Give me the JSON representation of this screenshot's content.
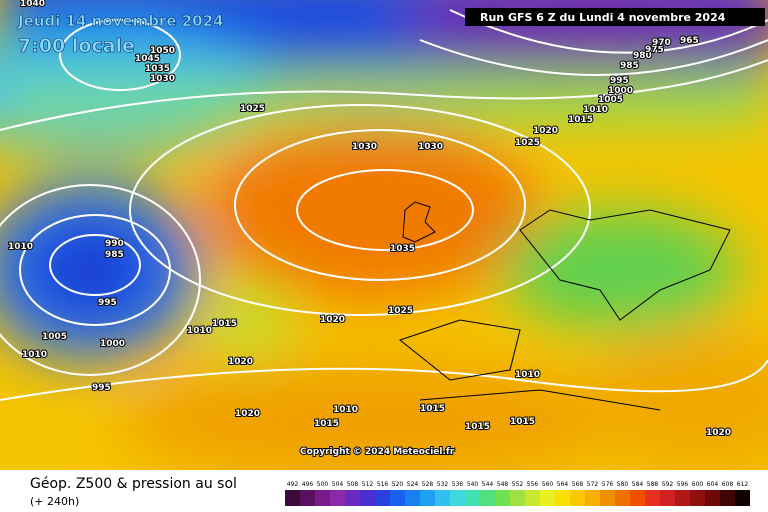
{
  "header": {
    "date": "Jeudi 14 novembre 2024",
    "time": "7:00 locale",
    "run": "Run GFS 6 Z du Lundi 4 novembre 2024"
  },
  "isobar_labels": [
    "1040",
    "1050",
    "1045",
    "1035",
    "1030",
    "1025",
    "1030",
    "1030",
    "1035",
    "1020",
    "1025",
    "1015",
    "1010",
    "1005",
    "1000",
    "995",
    "985",
    "980",
    "975",
    "970",
    "965",
    "1010",
    "990",
    "985",
    "995",
    "1000",
    "1005",
    "1010",
    "995",
    "1010",
    "1015",
    "1020",
    "1025",
    "1020",
    "1020",
    "1010",
    "1015",
    "1015",
    "1015",
    "1010",
    "1015",
    "1020"
  ],
  "copyright": "Copyright © 2024 Meteociel.fr",
  "footer": {
    "title": "Géop. Z500 & pression au sol",
    "subtitle": "(+ 240h)"
  },
  "colorbar": {
    "labels": [
      "492",
      "496",
      "500",
      "504",
      "508",
      "512",
      "516",
      "520",
      "524",
      "528",
      "532",
      "536",
      "540",
      "544",
      "548",
      "552",
      "556",
      "560",
      "564",
      "568",
      "572",
      "576",
      "580",
      "584",
      "588",
      "592",
      "596",
      "600",
      "604",
      "608",
      "612"
    ]
  }
}
